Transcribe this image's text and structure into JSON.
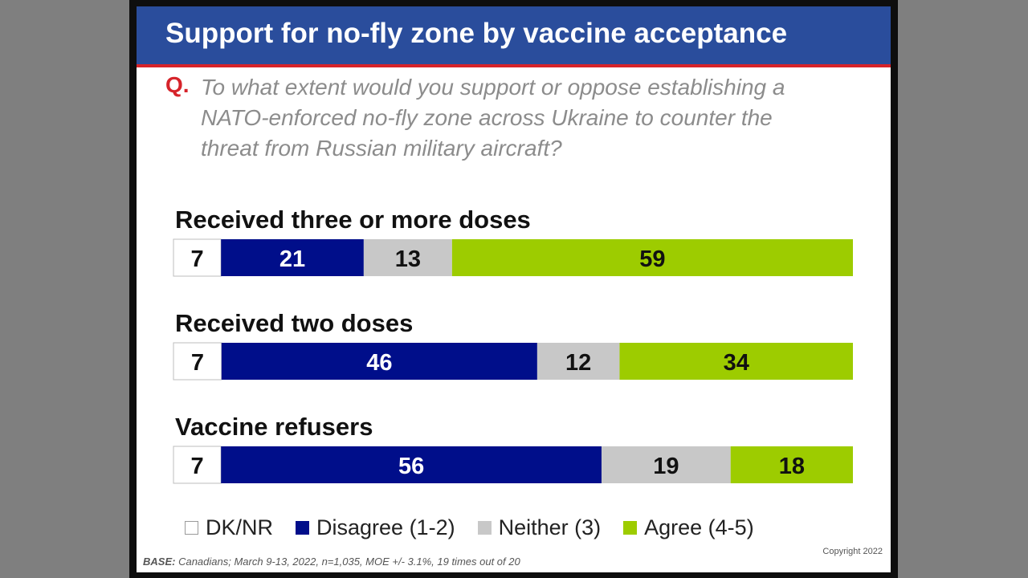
{
  "slide": {
    "title": "Support for no-fly zone by vaccine acceptance",
    "question_marker": "Q.",
    "question_text": "To what extent would you support or oppose establishing a NATO-enforced no-fly zone across Ukraine to counter the threat from Russian military aircraft?",
    "base_label": "BASE:",
    "base_text": "Canadians; March 9-13, 2022, n=1,035, MOE +/- 3.1%, 19 times out of 20",
    "copyright": "Copyright 2022"
  },
  "colors": {
    "title_bar": "#2a4d9c",
    "accent_red": "#d6232a",
    "dk_nr": "#ffffff",
    "disagree": "#000e8a",
    "neither": "#c8c8c8",
    "agree": "#9dcc00"
  },
  "chart_data": {
    "type": "bar",
    "orientation": "horizontal",
    "stacked": true,
    "categories": [
      "Received three or more doses",
      "Received two doses",
      "Vaccine refusers"
    ],
    "series": [
      {
        "name": "DK/NR",
        "values": [
          7,
          7,
          7
        ]
      },
      {
        "name": "Disagree (1-2)",
        "values": [
          21,
          46,
          56
        ]
      },
      {
        "name": "Neither (3)",
        "values": [
          13,
          12,
          19
        ]
      },
      {
        "name": "Agree (4-5)",
        "values": [
          59,
          34,
          18
        ]
      }
    ],
    "legend_position": "bottom",
    "grid": false
  }
}
